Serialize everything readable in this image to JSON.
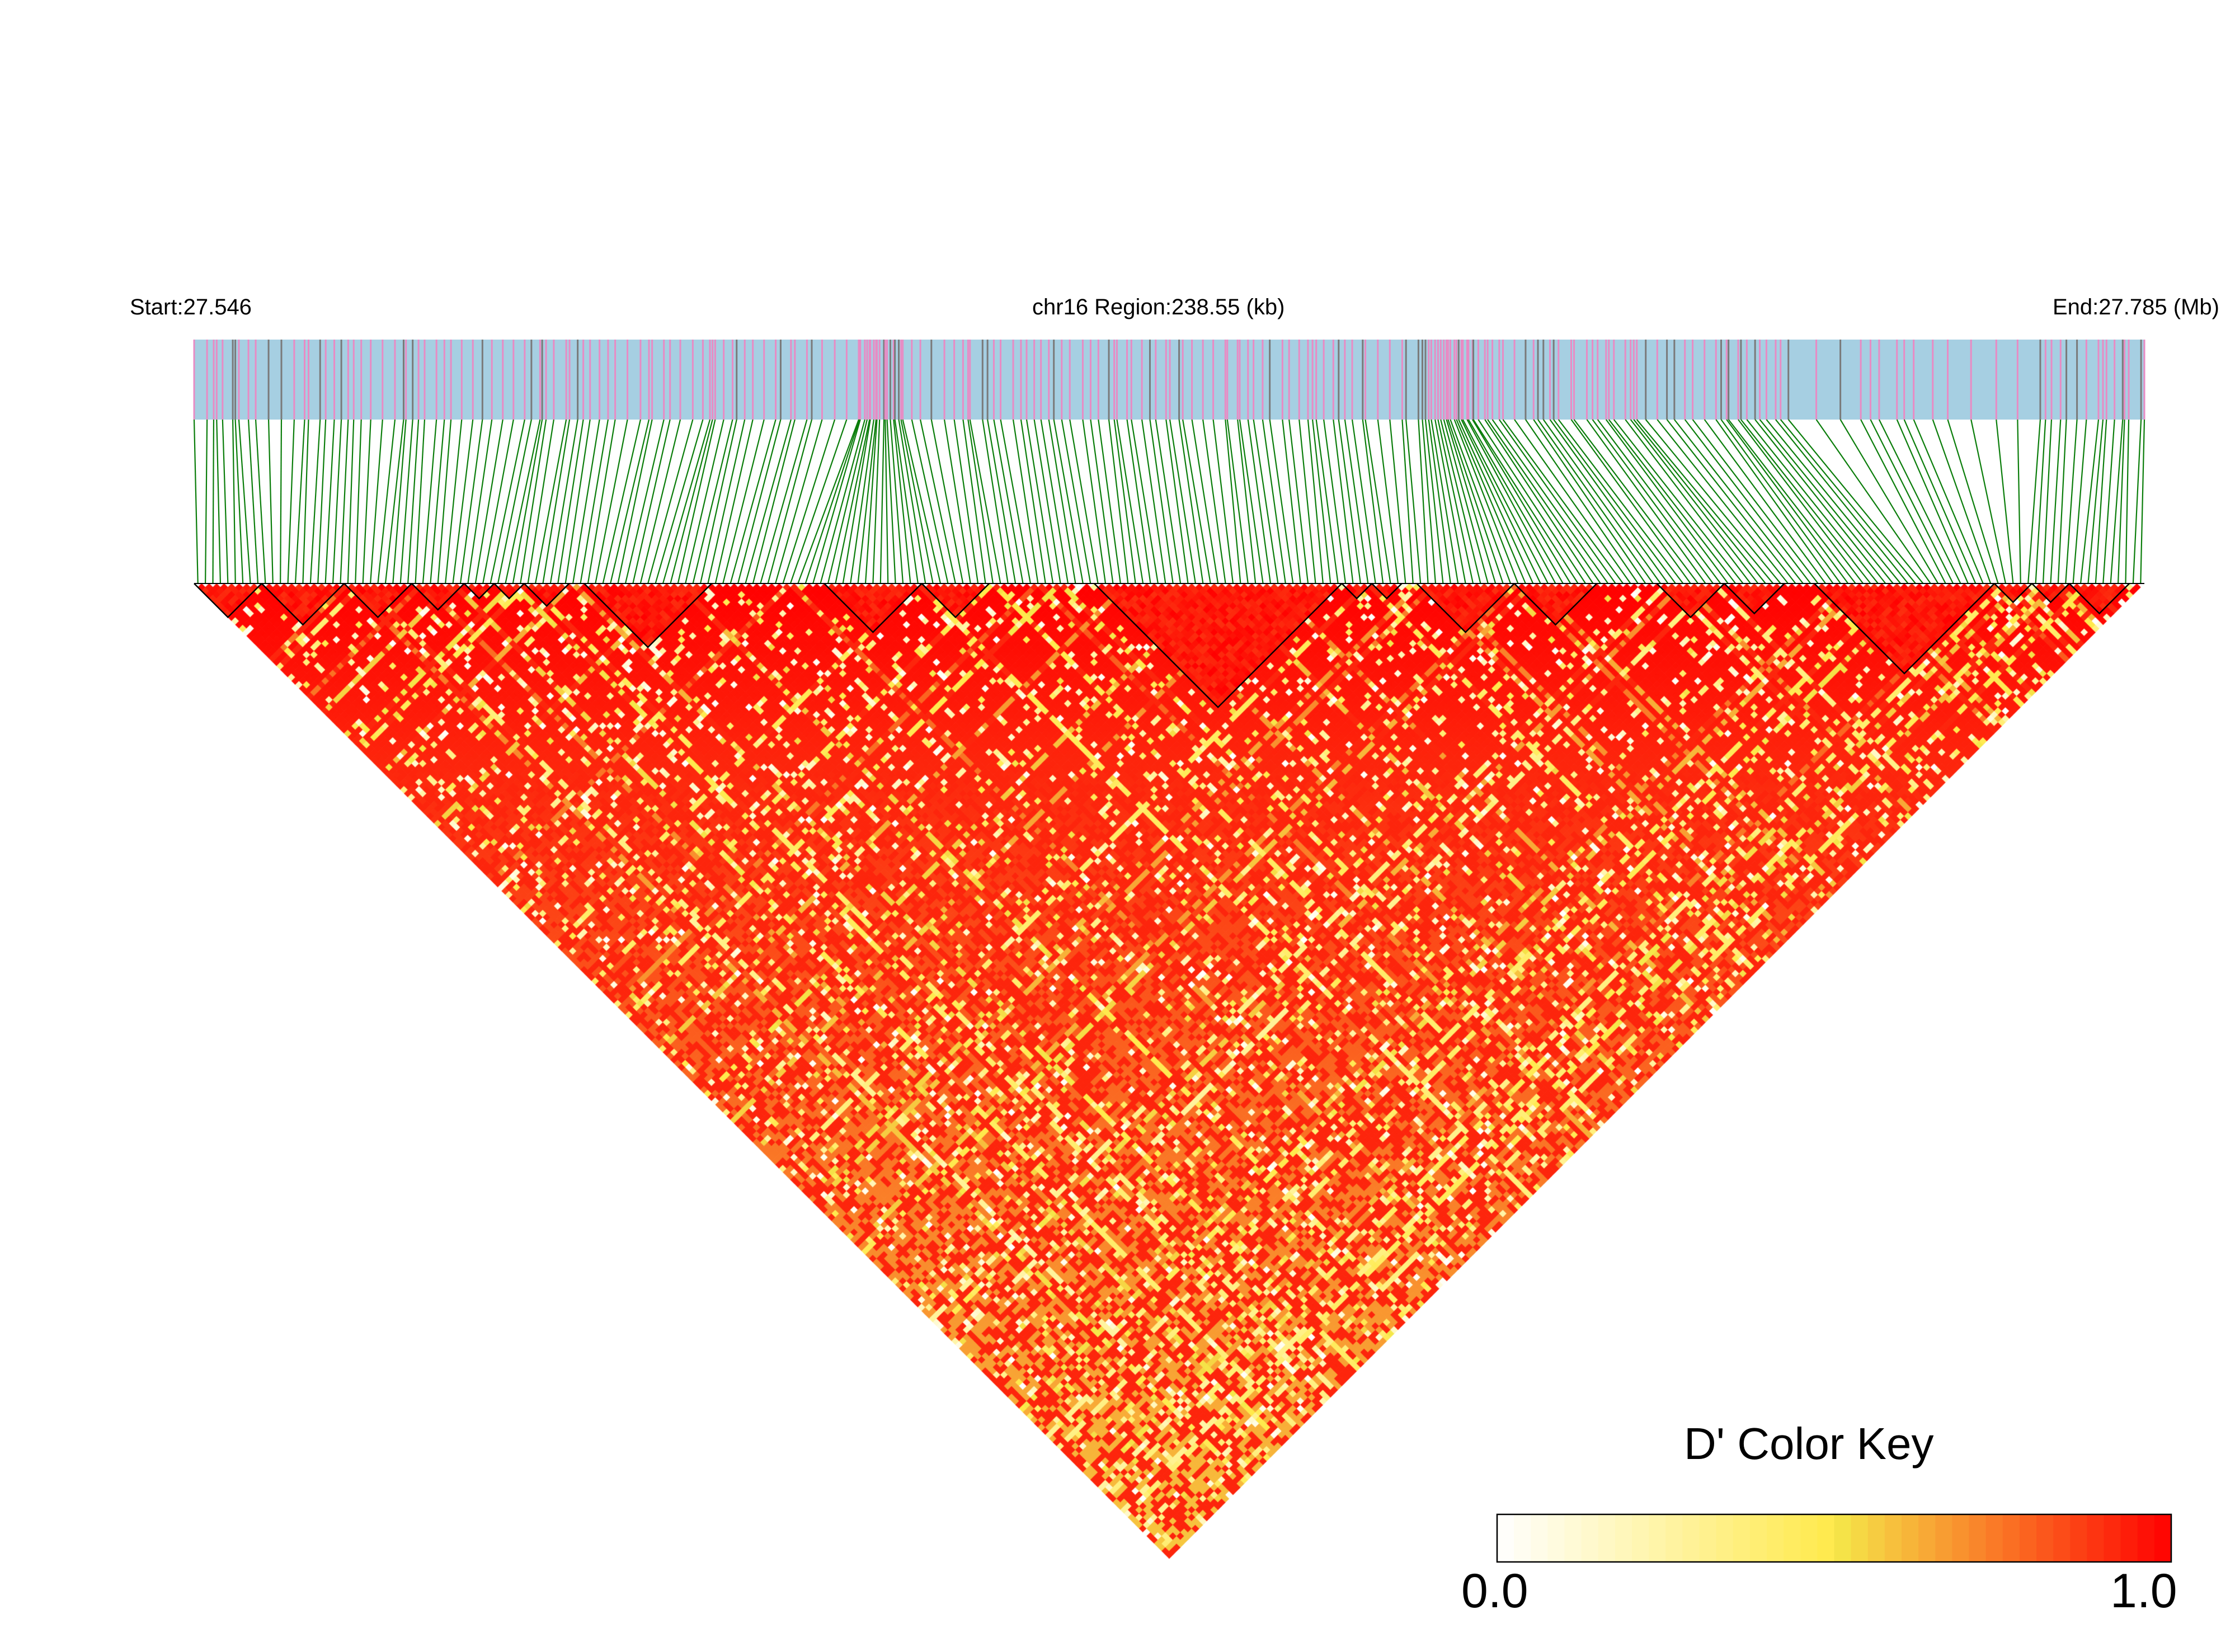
{
  "header": {
    "start_label": "Start:27.546",
    "region_label": "chr16 Region:238.55 (kb)",
    "end_label": "End:27.785 (Mb)"
  },
  "colors": {
    "snp_track_background": "#a6cfe2",
    "snp_tick_pink": "#e88bc4",
    "snp_tick_grey": "#7a7a7a",
    "connector_lines": "#0a7d0a",
    "block_outline": "#000000",
    "scale_low": "#ffffff",
    "scale_mid": "#f5e94a",
    "scale_high": "#ff0000"
  },
  "chart_data": {
    "type": "heatmap",
    "subtype": "LD triangle (pairwise D')",
    "chromosome": "chr16",
    "region_start_mb": 27.546,
    "region_end_mb": 27.785,
    "region_length_kb": 238.55,
    "snp_count_approx": 260,
    "value_label": "D'",
    "value_range": [
      0.0,
      1.0
    ],
    "haplotype_blocks_snp_index": [
      [
        0,
        9
      ],
      [
        9,
        20
      ],
      [
        20,
        29
      ],
      [
        29,
        36
      ],
      [
        36,
        40
      ],
      [
        40,
        44
      ],
      [
        44,
        50
      ],
      [
        52,
        69
      ],
      [
        84,
        97
      ],
      [
        97,
        106
      ],
      [
        120,
        153
      ],
      [
        153,
        157
      ],
      [
        157,
        161
      ],
      [
        163,
        176
      ],
      [
        176,
        187
      ],
      [
        195,
        204
      ],
      [
        204,
        212
      ],
      [
        216,
        240
      ],
      [
        240,
        245
      ],
      [
        245,
        250
      ],
      [
        250,
        258
      ]
    ],
    "legend": {
      "title": "D' Color Key",
      "min_label": "0.0",
      "max_label": "1.0"
    }
  }
}
